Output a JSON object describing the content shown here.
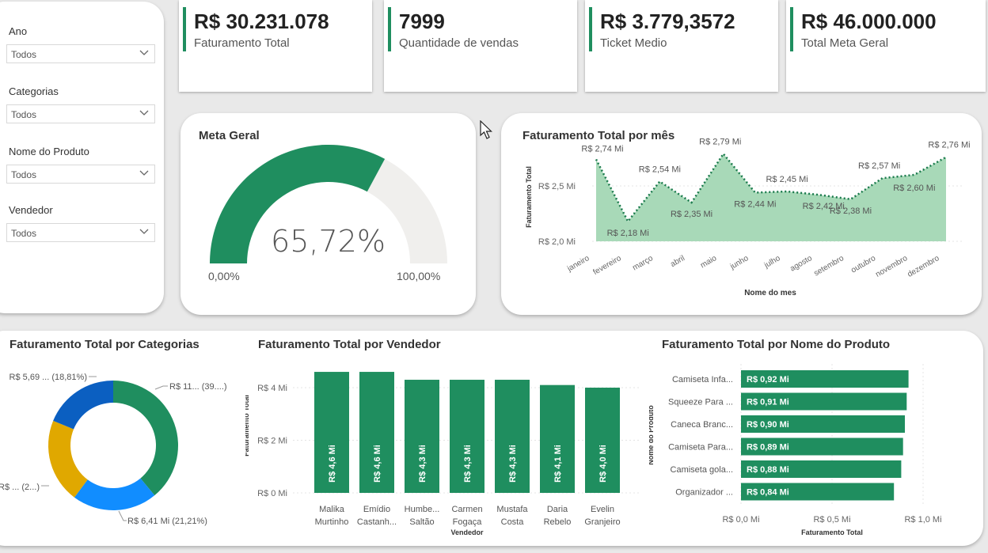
{
  "filters": [
    {
      "label": "Ano",
      "value": "Todos"
    },
    {
      "label": "Categorias",
      "value": "Todos"
    },
    {
      "label": "Nome do Produto",
      "value": "Todos"
    },
    {
      "label": "Vendedor",
      "value": "Todos"
    }
  ],
  "kpis": [
    {
      "value": "R$ 30.231.078",
      "label": "Faturamento Total"
    },
    {
      "value": "7999",
      "label": "Quantidade de vendas"
    },
    {
      "value": "R$ 3.779,3572",
      "label": "Ticket Medio"
    },
    {
      "value": "R$ 46.000.000",
      "label": "Total Meta Geral"
    }
  ],
  "gauge": {
    "title": "Meta Geral",
    "value_label": "65,72%",
    "min_label": "0,00%",
    "max_label": "100,00%",
    "fraction": 0.6572
  },
  "colors": {
    "accent": "#1f8e5f",
    "area": "#a8d9b8",
    "line": "#1a7a4c",
    "donut": [
      "#1f8e5f",
      "#118dff",
      "#e0a800",
      "#0b5fc1"
    ]
  },
  "line_chart": {
    "title": "Faturamento Total por mês",
    "ylabel": "Faturamento Total",
    "xlabel": "Nome do mes",
    "y_ticks": [
      "R$ 2,0 Mi",
      "R$ 2,5 Mi"
    ]
  },
  "categories_chart": {
    "title": "Faturamento Total por Categorias",
    "labels": [
      "R$ 11... (39....)",
      "R$ 6,41 Mi (21,21%)",
      "R$ ... (2...)",
      "R$ 5,69 ... (18,81%)"
    ]
  },
  "vendor_chart": {
    "title": "Faturamento Total por Vendedor",
    "ylabel": "Faturamento Total",
    "xlabel": "Vendedor",
    "y_ticks": [
      "R$ 0 Mi",
      "R$ 2 Mi",
      "R$ 4 Mi"
    ]
  },
  "product_chart": {
    "title": "Faturamento Total por Nome do Produto",
    "ylabel": "Nome do Produto",
    "xlabel": "Faturamento Total",
    "x_ticks": [
      "R$ 0,0 Mi",
      "R$ 0,5 Mi",
      "R$ 1,0 Mi"
    ]
  },
  "chart_data": [
    {
      "type": "area",
      "title": "Faturamento Total por mês",
      "xlabel": "Nome do mes",
      "ylabel": "Faturamento Total",
      "categories": [
        "janeiro",
        "fevereiro",
        "março",
        "abril",
        "maio",
        "junho",
        "julho",
        "agosto",
        "setembro",
        "outubro",
        "novembro",
        "dezembro"
      ],
      "values": [
        2.74,
        2.18,
        2.54,
        2.35,
        2.79,
        2.44,
        2.45,
        2.42,
        2.38,
        2.57,
        2.6,
        2.76
      ],
      "data_labels": [
        "R$ 2,74 Mi",
        "R$ 2,18 Mi",
        "R$ 2,54 Mi",
        "R$ 2,35 Mi",
        "R$ 2,79 Mi",
        "R$ 2,44 Mi",
        "R$ 2,45 Mi",
        "R$ 2,42 Mi",
        "R$ 2,38 Mi",
        "R$ 2,57 Mi",
        "R$ 2,60 Mi",
        "R$ 2,76 Mi"
      ],
      "ylim": [
        2.0,
        2.8
      ],
      "grid": true
    },
    {
      "type": "pie",
      "title": "Faturamento Total por Categorias",
      "values": [
        39.0,
        21.21,
        20.98,
        18.81
      ]
    },
    {
      "type": "bar",
      "title": "Faturamento Total por Vendedor",
      "xlabel": "Vendedor",
      "ylabel": "Faturamento Total",
      "categories": [
        [
          "Malika",
          "Murtinho"
        ],
        [
          "Emídio",
          "Castanh..."
        ],
        [
          "Humbe...",
          "Saltão"
        ],
        [
          "Carmen",
          "Fogaça"
        ],
        [
          "Mustafa",
          "Costa"
        ],
        [
          "Daria",
          "Rebelo"
        ],
        [
          "Evelin",
          "Granjeiro"
        ]
      ],
      "values": [
        4.6,
        4.6,
        4.3,
        4.3,
        4.3,
        4.1,
        4.0
      ],
      "data_labels": [
        "R$ 4,6 Mi",
        "R$ 4,6 Mi",
        "R$ 4,3 Mi",
        "R$ 4,3 Mi",
        "R$ 4,3 Mi",
        "R$ 4,1 Mi",
        "R$ 4,0 Mi"
      ],
      "ylim": [
        0,
        5
      ]
    },
    {
      "type": "bar",
      "orientation": "horizontal",
      "title": "Faturamento Total por Nome do Produto",
      "xlabel": "Faturamento Total",
      "ylabel": "Nome do Produto",
      "categories": [
        "Camiseta Infa...",
        "Squeeze Para ...",
        "Caneca Branc...",
        "Camiseta Para...",
        "Camiseta gola...",
        "Organizador ..."
      ],
      "values": [
        0.92,
        0.91,
        0.9,
        0.89,
        0.88,
        0.84
      ],
      "data_labels": [
        "R$ 0,92 Mi",
        "R$ 0,91 Mi",
        "R$ 0,90 Mi",
        "R$ 0,89 Mi",
        "R$ 0,88 Mi",
        "R$ 0,84 Mi"
      ],
      "xlim": [
        0,
        1.0
      ]
    }
  ]
}
